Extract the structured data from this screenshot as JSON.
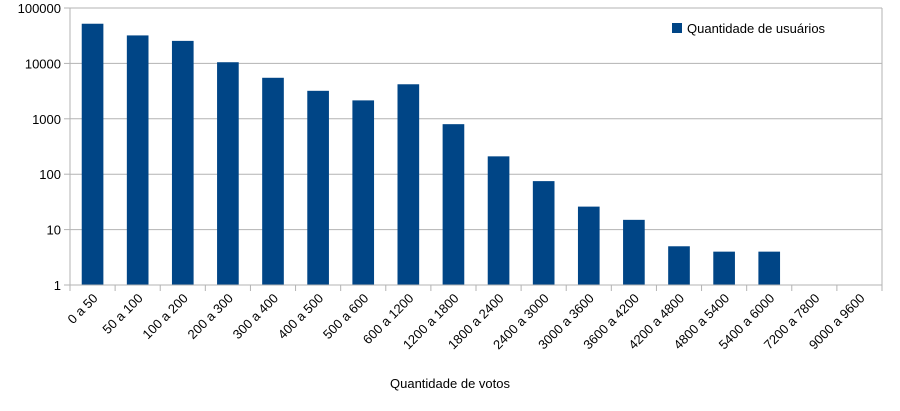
{
  "chart_data": {
    "type": "bar",
    "scale": "log10",
    "categories": [
      "0 a 50",
      "50 a 100",
      "100 a 200",
      "200 a 300",
      "300 a 400",
      "400 a 500",
      "500 a 600",
      "600 a 1200",
      "1200 a 1800",
      "1800 a 2400",
      "2400 a 3000",
      "3000 a 3600",
      "3600 a 4200",
      "4200 a 4800",
      "4800 a 5400",
      "5400 a 6000",
      "7200 a 7800",
      "9000 a 9600"
    ],
    "series": [
      {
        "name": "Quantidade de usuários",
        "values": [
          52000,
          32000,
          25500,
          10500,
          5500,
          3200,
          2150,
          4200,
          800,
          210,
          75,
          26,
          15,
          5,
          4,
          4,
          1,
          1
        ]
      }
    ],
    "xlabel": "Quantidade de votos",
    "ylabel": "",
    "ylim": [
      1,
      100000
    ],
    "yticks": [
      "1",
      "10",
      "100",
      "1000",
      "10000",
      "100000"
    ],
    "grid": true,
    "legend_position": "top-right",
    "colors": {
      "bar": "#004586",
      "grid": "#b3b3b3",
      "axis": "#b3b3b3"
    }
  }
}
